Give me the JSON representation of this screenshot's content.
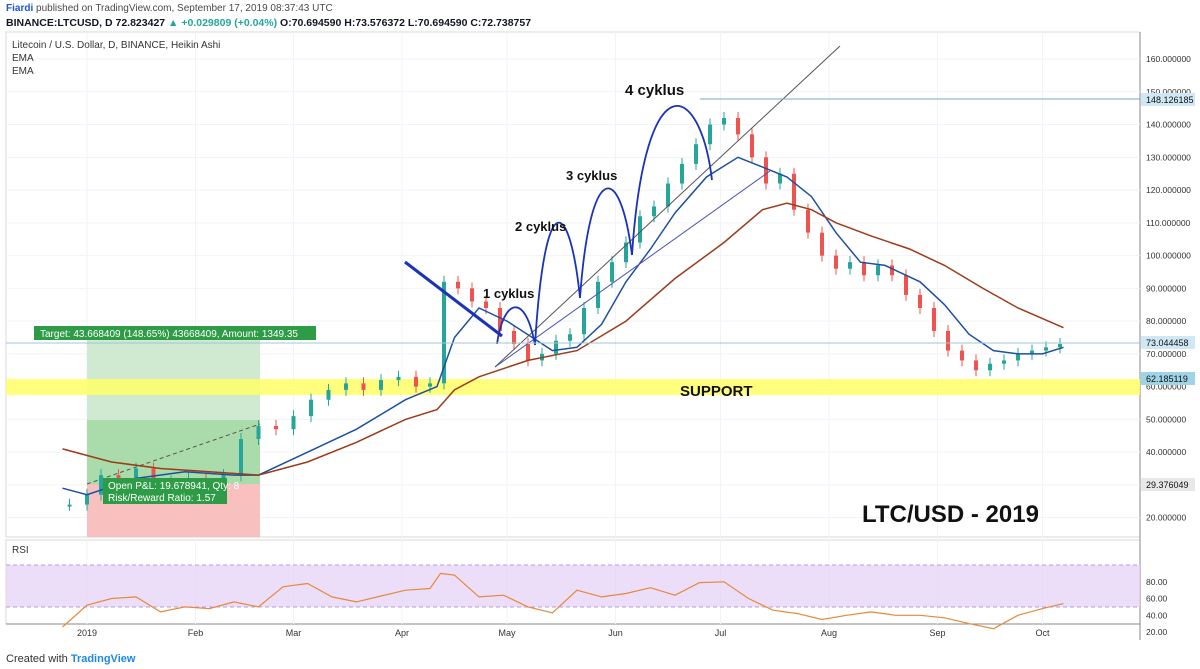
{
  "header": {
    "author": "Fiardi",
    "published_text": " published on TradingView.com, September 17, 2019 08:37:43 UTC",
    "symbol_line": "BINANCE:LTCUSD, D",
    "price_now": "72.823427",
    "change": "▲ +0.029809 (+0.04%)",
    "ohlc": "O:70.694590 H:73.576372 L:70.694590 C:72.738757"
  },
  "legend": {
    "title": "Litecoin / U.S. Dollar, D, BINANCE, Heikin Ashi",
    "ema1": "EMA",
    "ema2": "EMA"
  },
  "annotations": {
    "cycle1": "1 cyklus",
    "cycle2": "2 cyklus",
    "cycle3": "3 cyklus",
    "cycle4": "4 cyklus",
    "support": "SUPPORT",
    "big_title": "LTC/USD - 2019",
    "target_box": "Target: 43.668409 (148.65%) 43668409, Amount: 1349.35",
    "pnl_line1": "Open P&L: 19.678941, Qty: 8",
    "pnl_line2": "Risk/Reward Ratio: 1.57"
  },
  "price_badges": {
    "top_line": "148.126185",
    "current": "73.044458",
    "support": "62.185119",
    "stop": "29.376049"
  },
  "rsi_label": "RSI",
  "footer": {
    "created": "Created with",
    "brand": "TradingView"
  },
  "colors": {
    "bull": "#26a69a",
    "bear": "#ef5350",
    "ema_fast": "#1e4fa0",
    "ema_slow": "#9c3b1a",
    "cycle": "#1a33b8",
    "support_band": "#ffff66",
    "rsi_line": "#e58a3c",
    "rsi_band": "#e6d3f5"
  },
  "chart_data": [
    {
      "type": "candlestick",
      "title": "Litecoin / U.S. Dollar, D, BINANCE, Heikin Ashi",
      "x_ticks": [
        "2019",
        "Feb",
        "Mar",
        "Apr",
        "May",
        "Jun",
        "Jul",
        "Aug",
        "Sep",
        "Oct"
      ],
      "y_ticks": [
        "20.000000",
        "30.000000",
        "40.000000",
        "50.000000",
        "60.000000",
        "70.000000",
        "80.000000",
        "90.000000",
        "100.000000",
        "110.000000",
        "120.000000",
        "130.000000",
        "140.000000",
        "150.000000",
        "160.000000"
      ],
      "ylim": [
        12,
        166
      ],
      "series": [
        {
          "name": "EMA",
          "color": "#1e4fa0",
          "points": [
            [
              -7,
              29
            ],
            [
              0,
              27
            ],
            [
              14,
              32
            ],
            [
              28,
              34
            ],
            [
              42,
              33
            ],
            [
              49,
              33
            ],
            [
              63,
              40
            ],
            [
              77,
              47
            ],
            [
              91,
              56
            ],
            [
              100,
              60
            ],
            [
              105,
              75
            ],
            [
              112,
              84
            ],
            [
              120,
              80
            ],
            [
              133,
              71
            ],
            [
              140,
              72
            ],
            [
              147,
              79
            ],
            [
              154,
              92
            ],
            [
              161,
              102
            ],
            [
              168,
              113
            ],
            [
              177,
              124
            ],
            [
              186,
              130
            ],
            [
              193,
              127
            ],
            [
              200,
              124
            ],
            [
              207,
              118
            ],
            [
              214,
              107
            ],
            [
              221,
              98
            ],
            [
              228,
              97
            ],
            [
              238,
              92
            ],
            [
              245,
              85
            ],
            [
              252,
              76
            ],
            [
              259,
              71
            ],
            [
              266,
              70
            ],
            [
              273,
              70
            ],
            [
              279,
              72
            ]
          ]
        },
        {
          "name": "EMA",
          "color": "#9c3b1a",
          "points": [
            [
              -7,
              41
            ],
            [
              7,
              37
            ],
            [
              21,
              35
            ],
            [
              35,
              34
            ],
            [
              49,
              33
            ],
            [
              63,
              37
            ],
            [
              77,
              43
            ],
            [
              91,
              50
            ],
            [
              100,
              53
            ],
            [
              105,
              59
            ],
            [
              112,
              63
            ],
            [
              126,
              68
            ],
            [
              140,
              71
            ],
            [
              154,
              80
            ],
            [
              168,
              93
            ],
            [
              182,
              104
            ],
            [
              193,
              114
            ],
            [
              200,
              116
            ],
            [
              207,
              114
            ],
            [
              214,
              110
            ],
            [
              224,
              106
            ],
            [
              235,
              102
            ],
            [
              245,
              97
            ],
            [
              256,
              90
            ],
            [
              266,
              84
            ],
            [
              279,
              78
            ]
          ]
        }
      ],
      "candles": [
        [
          -5,
          24
        ],
        [
          0,
          27
        ],
        [
          4,
          33
        ],
        [
          9,
          31
        ],
        [
          14,
          35
        ],
        [
          19,
          30
        ],
        [
          24,
          31
        ],
        [
          29,
          32
        ],
        [
          34,
          30
        ],
        [
          39,
          33
        ],
        [
          44,
          44
        ],
        [
          49,
          48
        ],
        [
          54,
          47
        ],
        [
          59,
          51
        ],
        [
          64,
          56
        ],
        [
          69,
          59
        ],
        [
          74,
          61
        ],
        [
          79,
          59
        ],
        [
          84,
          62
        ],
        [
          89,
          63
        ],
        [
          94,
          60
        ],
        [
          98,
          61
        ],
        [
          102,
          92
        ],
        [
          106,
          90
        ],
        [
          110,
          86
        ],
        [
          114,
          84
        ],
        [
          118,
          77
        ],
        [
          122,
          73
        ],
        [
          126,
          68
        ],
        [
          130,
          70
        ],
        [
          134,
          74
        ],
        [
          138,
          76
        ],
        [
          142,
          84
        ],
        [
          146,
          92
        ],
        [
          150,
          98
        ],
        [
          154,
          104
        ],
        [
          158,
          112
        ],
        [
          162,
          115
        ],
        [
          166,
          122
        ],
        [
          170,
          128
        ],
        [
          174,
          134
        ],
        [
          178,
          140
        ],
        [
          182,
          142
        ],
        [
          186,
          137
        ],
        [
          190,
          130
        ],
        [
          194,
          122
        ],
        [
          198,
          125
        ],
        [
          202,
          114
        ],
        [
          206,
          107
        ],
        [
          210,
          100
        ],
        [
          214,
          96
        ],
        [
          218,
          98
        ],
        [
          222,
          94
        ],
        [
          226,
          97
        ],
        [
          230,
          94
        ],
        [
          234,
          88
        ],
        [
          238,
          84
        ],
        [
          242,
          77
        ],
        [
          246,
          71
        ],
        [
          250,
          68
        ],
        [
          254,
          65
        ],
        [
          258,
          67
        ],
        [
          262,
          68
        ],
        [
          266,
          70
        ],
        [
          270,
          71
        ],
        [
          274,
          72
        ],
        [
          278,
          73
        ]
      ],
      "annotations": [
        "1 cyklus",
        "2 cyklus",
        "3 cyklus",
        "4 cyklus",
        "SUPPORT",
        "LTC/USD - 2019"
      ],
      "position_tool": {
        "target": "Target: 43.668409 (148.65%) 43668409, Amount: 1349.35",
        "open_pnl": "Open P&L: 19.678941, Qty: 8",
        "risk_reward": "Risk/Reward Ratio: 1.57"
      },
      "support_zone": [
        57,
        62.185119
      ]
    },
    {
      "type": "line",
      "title": "RSI",
      "y_ticks": [
        "20.00",
        "40.00",
        "60.00",
        "80.00"
      ],
      "ylim": [
        20,
        92
      ],
      "band": [
        30,
        70
      ],
      "x": [
        -7,
        0,
        7,
        14,
        21,
        28,
        35,
        42,
        49,
        56,
        63,
        70,
        77,
        84,
        91,
        98,
        101,
        105,
        112,
        119,
        126,
        133,
        140,
        147,
        154,
        161,
        168,
        175,
        182,
        189,
        196,
        203,
        210,
        217,
        224,
        231,
        238,
        245,
        252,
        259,
        266,
        273,
        279
      ],
      "values": [
        26,
        52,
        60,
        62,
        44,
        50,
        48,
        56,
        50,
        74,
        78,
        62,
        56,
        63,
        70,
        72,
        90,
        88,
        62,
        64,
        50,
        43,
        70,
        62,
        66,
        73,
        64,
        79,
        80,
        60,
        46,
        42,
        35,
        40,
        44,
        40,
        40,
        37,
        30,
        24,
        40,
        48,
        54
      ]
    }
  ]
}
